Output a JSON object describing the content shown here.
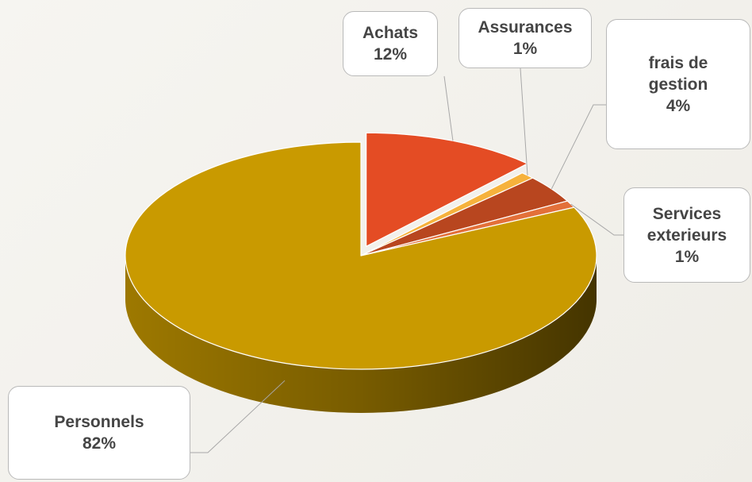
{
  "chart_data": {
    "type": "pie",
    "categories": [
      "Achats",
      "Assurances",
      "frais de gestion",
      "Services exterieurs",
      "Personnels"
    ],
    "values": [
      12,
      1,
      4,
      1,
      82
    ],
    "value_labels": [
      "12%",
      "1%",
      "4%",
      "1%",
      "82%"
    ],
    "colors": [
      "#e44c24",
      "#f6b23c",
      "#b8461f",
      "#e3703a",
      "#c99a00"
    ]
  }
}
